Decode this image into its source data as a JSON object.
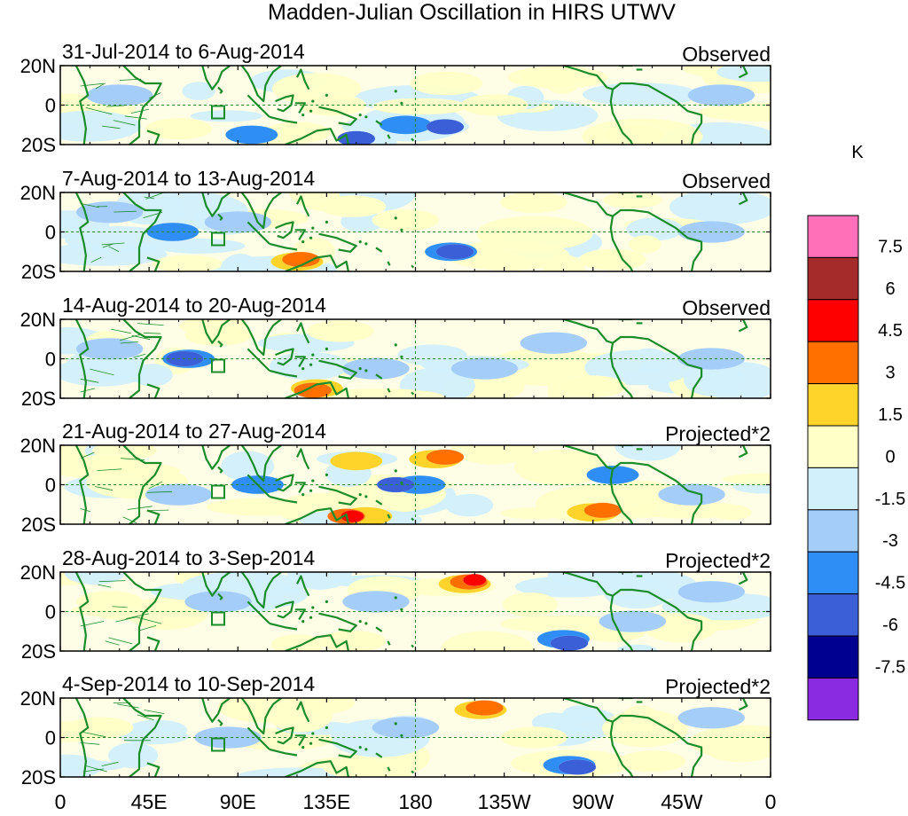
{
  "chart_data": {
    "type": "heatmap",
    "title": "Madden-Julian Oscillation in HIRS UTWV",
    "unit": "K",
    "panels": [
      {
        "date_range": "31-Jul-2014 to 6-Aug-2014",
        "tag": "Observed",
        "features": [
          {
            "lon": 97,
            "lat": -15,
            "value": -3
          },
          {
            "lon": 120,
            "lat": -14,
            "value": 1.5
          },
          {
            "lon": 138,
            "lat": 0,
            "value": 1.5
          },
          {
            "lon": 150,
            "lat": -17,
            "value": -4.5
          },
          {
            "lon": 175,
            "lat": -10,
            "value": -3
          },
          {
            "lon": 195,
            "lat": -11,
            "value": -4.5
          },
          {
            "lon": 250,
            "lat": 14,
            "value": 1.5
          },
          {
            "lon": 290,
            "lat": -15,
            "value": 1.5
          },
          {
            "lon": 30,
            "lat": 5,
            "value": -1.5
          },
          {
            "lon": 335,
            "lat": 5,
            "value": -1.5
          },
          {
            "lon": 220,
            "lat": 0,
            "value": 1.5
          },
          {
            "lon": 60,
            "lat": -12,
            "value": 1.5
          }
        ]
      },
      {
        "date_range": "7-Aug-2014 to 13-Aug-2014",
        "tag": "Observed",
        "features": [
          {
            "lon": 57,
            "lat": 0,
            "value": -3
          },
          {
            "lon": 120,
            "lat": -15,
            "value": 3
          },
          {
            "lon": 122,
            "lat": -14,
            "value": 4.5
          },
          {
            "lon": 148,
            "lat": 13,
            "value": 1.5
          },
          {
            "lon": 198,
            "lat": -10,
            "value": -3
          },
          {
            "lon": 200,
            "lat": -10,
            "value": -4.5
          },
          {
            "lon": 280,
            "lat": -14,
            "value": 1.5
          },
          {
            "lon": 330,
            "lat": 0,
            "value": -1.5
          },
          {
            "lon": 240,
            "lat": 15,
            "value": 1.5
          },
          {
            "lon": 175,
            "lat": 6,
            "value": 1.5
          },
          {
            "lon": 25,
            "lat": 10,
            "value": -1.5
          },
          {
            "lon": 90,
            "lat": 5,
            "value": -1.5
          }
        ]
      },
      {
        "date_range": "14-Aug-2014 to 20-Aug-2014",
        "tag": "Observed",
        "features": [
          {
            "lon": 65,
            "lat": 0,
            "value": -3
          },
          {
            "lon": 63,
            "lat": 0,
            "value": -4.5
          },
          {
            "lon": 142,
            "lat": 14,
            "value": 1.5
          },
          {
            "lon": 130,
            "lat": -15,
            "value": 3
          },
          {
            "lon": 128,
            "lat": -16,
            "value": 4.5
          },
          {
            "lon": 215,
            "lat": -5,
            "value": -1.5
          },
          {
            "lon": 330,
            "lat": 0,
            "value": -1.5
          },
          {
            "lon": 270,
            "lat": -14,
            "value": 1.5
          },
          {
            "lon": 80,
            "lat": 12,
            "value": 1.5
          },
          {
            "lon": 25,
            "lat": 5,
            "value": -1.5
          },
          {
            "lon": 160,
            "lat": -5,
            "value": -1.5
          },
          {
            "lon": 250,
            "lat": 8,
            "value": -1.5
          }
        ]
      },
      {
        "date_range": "21-Aug-2014 to 27-Aug-2014",
        "tag": "Projected*2",
        "features": [
          {
            "lon": 25,
            "lat": 10,
            "value": 1.5
          },
          {
            "lon": 150,
            "lat": 12,
            "value": 3
          },
          {
            "lon": 190,
            "lat": 13,
            "value": 3
          },
          {
            "lon": 195,
            "lat": 14,
            "value": 4.5
          },
          {
            "lon": 155,
            "lat": -16,
            "value": 3
          },
          {
            "lon": 145,
            "lat": -16,
            "value": 4.5
          },
          {
            "lon": 148,
            "lat": -16,
            "value": 6
          },
          {
            "lon": 100,
            "lat": 0,
            "value": -3
          },
          {
            "lon": 182,
            "lat": 0,
            "value": -3
          },
          {
            "lon": 170,
            "lat": 0,
            "value": -4.5
          },
          {
            "lon": 270,
            "lat": -14,
            "value": 3
          },
          {
            "lon": 275,
            "lat": -13,
            "value": 4.5
          },
          {
            "lon": 280,
            "lat": 5,
            "value": -3
          },
          {
            "lon": 60,
            "lat": -5,
            "value": -1.5
          },
          {
            "lon": 320,
            "lat": -5,
            "value": -1.5
          }
        ]
      },
      {
        "date_range": "28-Aug-2014 to 3-Sep-2014",
        "tag": "Projected*2",
        "features": [
          {
            "lon": 25,
            "lat": 5,
            "value": 1.5
          },
          {
            "lon": 205,
            "lat": 14,
            "value": 3
          },
          {
            "lon": 207,
            "lat": 15,
            "value": 4.5
          },
          {
            "lon": 210,
            "lat": 16,
            "value": 6
          },
          {
            "lon": 148,
            "lat": -15,
            "value": 1.5
          },
          {
            "lon": 255,
            "lat": -14,
            "value": -3
          },
          {
            "lon": 258,
            "lat": -16,
            "value": -4.5
          },
          {
            "lon": 280,
            "lat": -10,
            "value": 1.5
          },
          {
            "lon": 290,
            "lat": -5,
            "value": -1.5
          },
          {
            "lon": 80,
            "lat": 5,
            "value": -1.5
          },
          {
            "lon": 160,
            "lat": 5,
            "value": -1.5
          },
          {
            "lon": 330,
            "lat": 10,
            "value": -1.5
          }
        ]
      },
      {
        "date_range": "4-Sep-2014 to 10-Sep-2014",
        "tag": "Projected*2",
        "features": [
          {
            "lon": 20,
            "lat": 5,
            "value": 1.5
          },
          {
            "lon": 213,
            "lat": 14,
            "value": 3
          },
          {
            "lon": 215,
            "lat": 15,
            "value": 4.5
          },
          {
            "lon": 150,
            "lat": -15,
            "value": 1.5
          },
          {
            "lon": 258,
            "lat": -14,
            "value": -3
          },
          {
            "lon": 262,
            "lat": -15,
            "value": -4.5
          },
          {
            "lon": 300,
            "lat": -12,
            "value": 1.5
          },
          {
            "lon": 85,
            "lat": 0,
            "value": -1.5
          },
          {
            "lon": 175,
            "lat": 5,
            "value": -1.5
          },
          {
            "lon": 330,
            "lat": 10,
            "value": -1.5
          },
          {
            "lon": 240,
            "lat": 0,
            "value": 1.5
          }
        ]
      }
    ],
    "x_ticks": [
      "0",
      "45E",
      "90E",
      "135E",
      "180",
      "135W",
      "90W",
      "45W",
      "0"
    ],
    "x_tick_values": [
      0,
      45,
      90,
      135,
      180,
      225,
      270,
      315,
      360
    ],
    "y_ticks": [
      "20N",
      "0",
      "20S"
    ],
    "y_tick_values": [
      20,
      0,
      -20
    ],
    "xlim": [
      0,
      360
    ],
    "ylim": [
      -20,
      20
    ],
    "colorbar": {
      "labels": [
        "7.5",
        "6",
        "4.5",
        "3",
        "1.5",
        "0",
        "-1.5",
        "-3",
        "-4.5",
        "-6",
        "-7.5"
      ],
      "levels": [
        7.5,
        6,
        4.5,
        3,
        1.5,
        0,
        -1.5,
        -3,
        -4.5,
        -6,
        -7.5
      ],
      "colors": [
        "#ff70b8",
        "#a52a2a",
        "#ff0000",
        "#ff7000",
        "#ffd42a",
        "#ffffc8",
        "#d2f0fc",
        "#a4cdfa",
        "#2e8ef5",
        "#3b5fd6",
        "#000090",
        "#8a2be2"
      ]
    },
    "coast_color": "#1a8c2a",
    "grid_color": "#2a8a2a"
  }
}
